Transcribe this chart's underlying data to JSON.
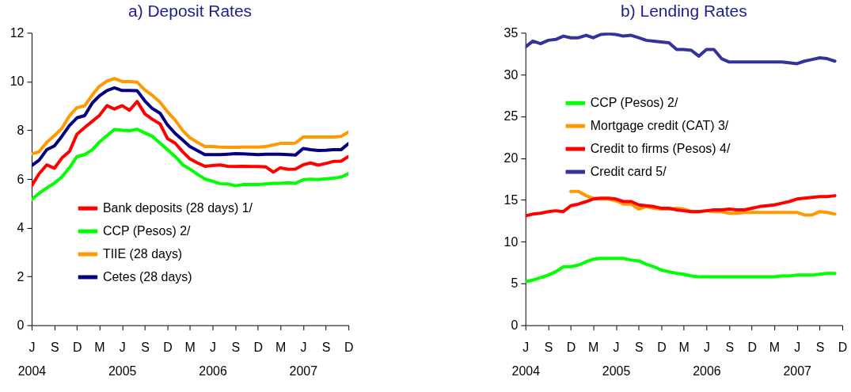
{
  "chart_data": [
    {
      "type": "line",
      "title": "a) Deposit Rates",
      "x": [
        "2004-06",
        "2004-07",
        "2004-08",
        "2004-09",
        "2004-10",
        "2004-11",
        "2004-12",
        "2005-01",
        "2005-02",
        "2005-03",
        "2005-04",
        "2005-05",
        "2005-06",
        "2005-07",
        "2005-08",
        "2005-09",
        "2005-10",
        "2005-11",
        "2005-12",
        "2006-01",
        "2006-02",
        "2006-03",
        "2006-04",
        "2006-05",
        "2006-06",
        "2006-07",
        "2006-08",
        "2006-09",
        "2006-10",
        "2006-11",
        "2006-12",
        "2007-01",
        "2007-02",
        "2007-03",
        "2007-04",
        "2007-05",
        "2007-06",
        "2007-07",
        "2007-08",
        "2007-09",
        "2007-10",
        "2007-11",
        "2007-12"
      ],
      "series": [
        {
          "name": "Bank deposits (28 days) 1/",
          "color": "#ff0000",
          "values": [
            5.72,
            6.21,
            6.58,
            6.44,
            6.86,
            7.14,
            7.84,
            8.11,
            8.37,
            8.6,
            9.01,
            8.87,
            9.01,
            8.82,
            9.18,
            8.67,
            8.45,
            8.26,
            7.66,
            7.47,
            7.11,
            6.83,
            6.66,
            6.52,
            6.55,
            6.58,
            6.52,
            6.51,
            6.52,
            6.51,
            6.51,
            6.5,
            6.28,
            6.46,
            6.4,
            6.41,
            6.58,
            6.66,
            6.57,
            6.64,
            6.72,
            6.73,
            6.92
          ]
        },
        {
          "name": "CCP (Pesos) 2/",
          "color": "#00ff00",
          "values": [
            5.16,
            5.41,
            5.63,
            5.83,
            6.08,
            6.47,
            6.92,
            7.0,
            7.2,
            7.51,
            7.78,
            8.03,
            8.0,
            7.98,
            8.04,
            7.89,
            7.75,
            7.47,
            7.2,
            6.92,
            6.58,
            6.41,
            6.19,
            6.0,
            5.91,
            5.81,
            5.8,
            5.72,
            5.77,
            5.77,
            5.77,
            5.8,
            5.82,
            5.82,
            5.85,
            5.82,
            5.97,
            5.99,
            5.98,
            6.01,
            6.03,
            6.08,
            6.22
          ]
        },
        {
          "name": "TIIE (28 days)",
          "color": "#ff9900",
          "values": [
            7.03,
            7.12,
            7.5,
            7.78,
            8.07,
            8.6,
            8.93,
            9.0,
            9.45,
            9.8,
            10.02,
            10.12,
            10.0,
            10.0,
            9.97,
            9.65,
            9.43,
            9.15,
            8.76,
            8.42,
            7.98,
            7.7,
            7.5,
            7.33,
            7.33,
            7.31,
            7.3,
            7.3,
            7.31,
            7.31,
            7.31,
            7.33,
            7.4,
            7.46,
            7.46,
            7.47,
            7.72,
            7.72,
            7.72,
            7.72,
            7.72,
            7.75,
            7.93
          ]
        },
        {
          "name": "Cetes (28 days)",
          "color": "#000080",
          "values": [
            6.55,
            6.77,
            7.2,
            7.36,
            7.75,
            8.2,
            8.51,
            8.6,
            9.12,
            9.41,
            9.63,
            9.74,
            9.63,
            9.63,
            9.62,
            9.2,
            8.89,
            8.7,
            8.22,
            7.87,
            7.59,
            7.33,
            7.16,
            7.0,
            7.0,
            7.0,
            7.02,
            7.04,
            7.03,
            7.02,
            7.0,
            7.02,
            7.02,
            7.02,
            7.0,
            6.98,
            7.25,
            7.2,
            7.17,
            7.18,
            7.2,
            7.2,
            7.45
          ]
        }
      ],
      "xlim": [
        "2004-06",
        "2007-12"
      ],
      "xticks": [
        {
          "value": "2004-06",
          "label": "J\n2004"
        },
        {
          "value": "2004-09",
          "label": "S"
        },
        {
          "value": "2004-12",
          "label": "D"
        },
        {
          "value": "2005-03",
          "label": "M"
        },
        {
          "value": "2005-06",
          "label": "J\n2005"
        },
        {
          "value": "2005-09",
          "label": "S"
        },
        {
          "value": "2005-12",
          "label": "D"
        },
        {
          "value": "2006-03",
          "label": "M"
        },
        {
          "value": "2006-06",
          "label": "J\n2006"
        },
        {
          "value": "2006-09",
          "label": "S"
        },
        {
          "value": "2006-12",
          "label": "D"
        },
        {
          "value": "2007-03",
          "label": "M"
        },
        {
          "value": "2007-06",
          "label": "J\n2007"
        },
        {
          "value": "2007-09",
          "label": "S"
        },
        {
          "value": "2007-12",
          "label": "D"
        }
      ],
      "ylim": [
        0,
        12
      ],
      "yticks": [
        0,
        2,
        4,
        6,
        8,
        10,
        12
      ],
      "grid": false,
      "legend": "bottom",
      "marker": "none",
      "line_style": "solid"
    },
    {
      "type": "line",
      "title": "b) Lending Rates",
      "x": [
        "2004-06",
        "2004-07",
        "2004-08",
        "2004-09",
        "2004-10",
        "2004-11",
        "2004-12",
        "2005-01",
        "2005-02",
        "2005-03",
        "2005-04",
        "2005-05",
        "2005-06",
        "2005-07",
        "2005-08",
        "2005-09",
        "2005-10",
        "2005-11",
        "2005-12",
        "2006-01",
        "2006-02",
        "2006-03",
        "2006-04",
        "2006-05",
        "2006-06",
        "2006-07",
        "2006-08",
        "2006-09",
        "2006-10",
        "2006-11",
        "2006-12",
        "2007-01",
        "2007-02",
        "2007-03",
        "2007-04",
        "2007-05",
        "2007-06",
        "2007-07",
        "2007-08",
        "2007-09",
        "2007-10",
        "2007-11"
      ],
      "series": [
        {
          "name": "CCP (Pesos) 2/",
          "color": "#00ff00",
          "values": [
            5.2,
            5.4,
            5.7,
            6.0,
            6.4,
            7.0,
            7.0,
            7.2,
            7.6,
            7.9,
            8.0,
            8.0,
            8.0,
            8.0,
            7.8,
            7.7,
            7.3,
            7.0,
            6.6,
            6.4,
            6.2,
            6.1,
            5.9,
            5.8,
            5.8,
            5.8,
            5.8,
            5.8,
            5.8,
            5.8,
            5.8,
            5.8,
            5.8,
            5.8,
            5.9,
            5.9,
            6.0,
            6.0,
            6.0,
            6.1,
            6.2,
            6.2
          ]
        },
        {
          "name": "Mortgage credit (CAT) 3/",
          "color": "#ff9900",
          "values": [
            null,
            null,
            null,
            null,
            null,
            null,
            16.0,
            16.0,
            15.5,
            15.2,
            15.1,
            15.1,
            14.9,
            14.5,
            14.5,
            13.9,
            14.2,
            14.0,
            13.9,
            13.9,
            14.0,
            13.9,
            13.6,
            13.6,
            13.7,
            13.6,
            13.6,
            13.4,
            13.4,
            13.5,
            13.5,
            13.5,
            13.5,
            13.5,
            13.5,
            13.5,
            13.5,
            13.2,
            13.2,
            13.6,
            13.5,
            13.3
          ]
        },
        {
          "name": "Credit to firms (Pesos) 4/",
          "color": "#ff0000",
          "values": [
            13.1,
            13.3,
            13.4,
            13.6,
            13.7,
            13.6,
            14.3,
            14.5,
            14.8,
            15.1,
            15.2,
            15.2,
            15.1,
            14.8,
            14.8,
            14.4,
            14.3,
            14.2,
            14.0,
            14.0,
            13.8,
            13.7,
            13.6,
            13.6,
            13.7,
            13.8,
            13.8,
            13.9,
            13.8,
            13.8,
            14.0,
            14.2,
            14.3,
            14.4,
            14.6,
            14.8,
            15.1,
            15.2,
            15.3,
            15.4,
            15.4,
            15.5
          ]
        },
        {
          "name": "Credit card 5/",
          "color": "#333399",
          "values": [
            33.3,
            34.0,
            33.7,
            34.1,
            34.2,
            34.6,
            34.4,
            34.4,
            34.7,
            34.4,
            34.8,
            34.9,
            34.8,
            34.6,
            34.7,
            34.4,
            34.1,
            34.0,
            33.9,
            33.8,
            33.0,
            33.0,
            32.9,
            32.2,
            33.0,
            33.0,
            31.9,
            31.5,
            31.5,
            31.5,
            31.5,
            31.5,
            31.5,
            31.5,
            31.5,
            31.4,
            31.3,
            31.6,
            31.8,
            32.0,
            31.9,
            31.6
          ]
        }
      ],
      "xlim": [
        "2004-06",
        "2007-12"
      ],
      "xticks": [
        {
          "value": "2004-06",
          "label": "J\n2004"
        },
        {
          "value": "2004-09",
          "label": "S"
        },
        {
          "value": "2004-12",
          "label": "D"
        },
        {
          "value": "2005-03",
          "label": "M"
        },
        {
          "value": "2005-06",
          "label": "J\n2005"
        },
        {
          "value": "2005-09",
          "label": "S"
        },
        {
          "value": "2005-12",
          "label": "D"
        },
        {
          "value": "2006-03",
          "label": "M"
        },
        {
          "value": "2006-06",
          "label": "J\n2006"
        },
        {
          "value": "2006-09",
          "label": "S"
        },
        {
          "value": "2006-12",
          "label": "D"
        },
        {
          "value": "2007-03",
          "label": "M"
        },
        {
          "value": "2007-06",
          "label": "J\n2007"
        },
        {
          "value": "2007-09",
          "label": "S"
        },
        {
          "value": "2007-12",
          "label": "D"
        }
      ],
      "ylim": [
        0,
        35
      ],
      "yticks": [
        0,
        5,
        10,
        15,
        20,
        25,
        30,
        35
      ],
      "grid": false,
      "legend": "left",
      "marker": "none",
      "line_style": "solid"
    }
  ]
}
